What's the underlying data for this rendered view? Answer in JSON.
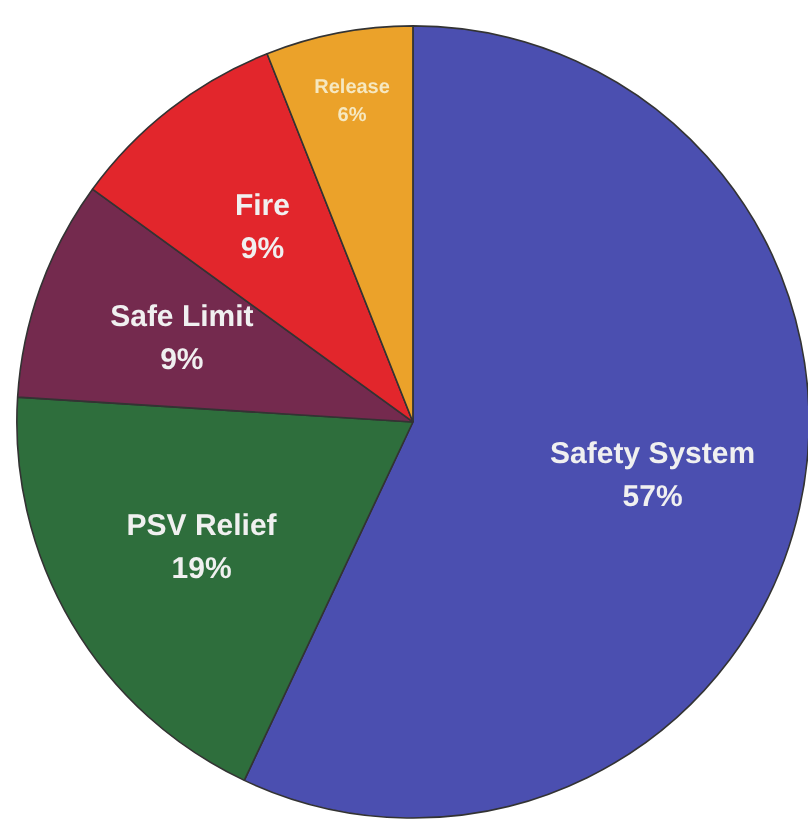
{
  "chart_data": {
    "type": "pie",
    "categories": [
      "Safety System",
      "PSV Relief",
      "Safe Limit",
      "Fire",
      "Release"
    ],
    "values": [
      57,
      19,
      9,
      9,
      6
    ],
    "value_labels": [
      "57%",
      "19%",
      "9%",
      "9%",
      "6%"
    ],
    "colors": [
      "#4b4fb0",
      "#2e6e3c",
      "#742a4e",
      "#e2262c",
      "#eba22a"
    ]
  }
}
